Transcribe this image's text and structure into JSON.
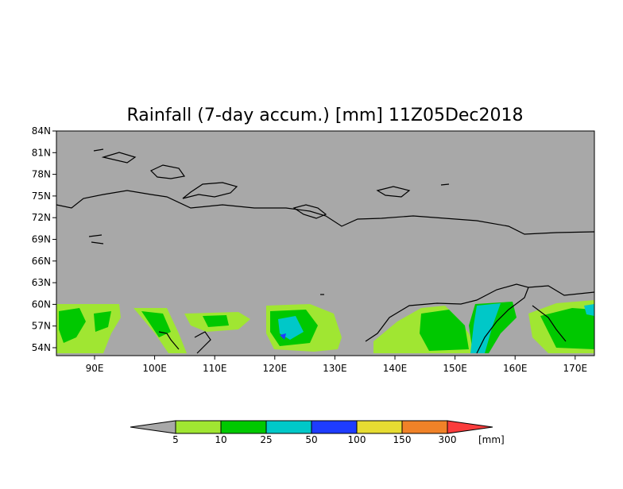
{
  "title": "Rainfall (7-day accum.) [mm] 11Z05Dec2018",
  "map": {
    "lon_range": [
      83,
      174
    ],
    "lat_range": [
      53,
      84
    ],
    "background_color": "#a8a8a8",
    "lat_ticks": [
      "84N",
      "81N",
      "78N",
      "75N",
      "72N",
      "69N",
      "66N",
      "63N",
      "60N",
      "57N",
      "54N"
    ],
    "lon_ticks": [
      "90E",
      "100E",
      "110E",
      "120E",
      "130E",
      "140E",
      "150E",
      "160E",
      "170E"
    ]
  },
  "colorbar": {
    "unit": "[mm]",
    "labels": [
      "5",
      "10",
      "25",
      "50",
      "100",
      "150",
      "300"
    ],
    "colors": [
      "#a8a8a8",
      "#a0e632",
      "#00c800",
      "#00c8c8",
      "#1e3cff",
      "#e6dc32",
      "#f08228",
      "#fa3c3c"
    ]
  }
}
